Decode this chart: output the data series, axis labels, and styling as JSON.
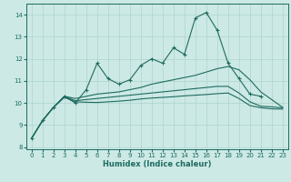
{
  "xlabel": "Humidex (Indice chaleur)",
  "xlim": [
    -0.5,
    23.5
  ],
  "ylim": [
    7.9,
    14.5
  ],
  "yticks": [
    8,
    9,
    10,
    11,
    12,
    13,
    14
  ],
  "xticks": [
    0,
    1,
    2,
    3,
    4,
    5,
    6,
    7,
    8,
    9,
    10,
    11,
    12,
    13,
    14,
    15,
    16,
    17,
    18,
    19,
    20,
    21,
    22,
    23
  ],
  "bg_color": "#cce9e5",
  "line_color": "#1e6b60",
  "grid_color": "#aed4ce",
  "line1_x": [
    0,
    1,
    2,
    3,
    4,
    5,
    6,
    7,
    8,
    9,
    10,
    11,
    12,
    13,
    14,
    15,
    16,
    17,
    18,
    19,
    20,
    21
  ],
  "line1_y": [
    8.4,
    9.2,
    9.8,
    10.3,
    10.0,
    10.6,
    11.8,
    11.1,
    10.85,
    11.05,
    11.7,
    12.0,
    11.8,
    12.5,
    12.2,
    13.85,
    14.1,
    13.3,
    11.8,
    11.1,
    10.4,
    10.3
  ],
  "line2_x": [
    0,
    1,
    2,
    3,
    4,
    5,
    6,
    7,
    8,
    9,
    10,
    11,
    12,
    13,
    14,
    15,
    16,
    17,
    18,
    19,
    20,
    21,
    22,
    23
  ],
  "line2_y": [
    8.4,
    9.2,
    9.8,
    10.3,
    10.2,
    10.3,
    10.4,
    10.45,
    10.5,
    10.6,
    10.7,
    10.85,
    10.95,
    11.05,
    11.15,
    11.25,
    11.4,
    11.55,
    11.65,
    11.5,
    11.05,
    10.5,
    10.15,
    9.8
  ],
  "line3_x": [
    0,
    1,
    2,
    3,
    4,
    5,
    6,
    7,
    8,
    9,
    10,
    11,
    12,
    13,
    14,
    15,
    16,
    17,
    18,
    19,
    20,
    21,
    22,
    23
  ],
  "line3_y": [
    8.4,
    9.2,
    9.8,
    10.3,
    10.1,
    10.15,
    10.2,
    10.25,
    10.3,
    10.35,
    10.4,
    10.45,
    10.5,
    10.55,
    10.6,
    10.65,
    10.7,
    10.75,
    10.75,
    10.45,
    10.05,
    9.85,
    9.82,
    9.78
  ],
  "line4_x": [
    0,
    1,
    2,
    3,
    4,
    5,
    6,
    7,
    8,
    9,
    10,
    11,
    12,
    13,
    14,
    15,
    16,
    17,
    18,
    19,
    20,
    21,
    22,
    23
  ],
  "line4_y": [
    8.4,
    9.2,
    9.8,
    10.25,
    10.05,
    10.03,
    10.02,
    10.05,
    10.08,
    10.12,
    10.18,
    10.22,
    10.25,
    10.28,
    10.32,
    10.35,
    10.38,
    10.42,
    10.45,
    10.2,
    9.88,
    9.78,
    9.73,
    9.72
  ]
}
